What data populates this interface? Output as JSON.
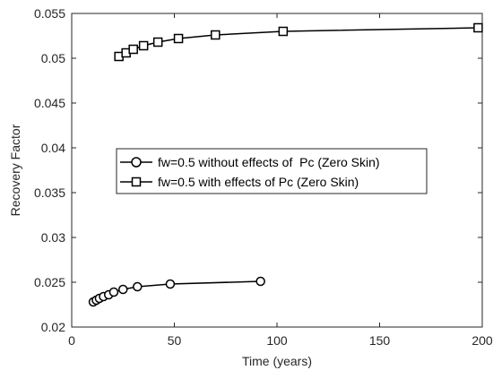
{
  "chart_data": {
    "type": "line",
    "xlabel": "Time (years)",
    "ylabel": "Recovery Factor",
    "xlim": [
      0,
      200
    ],
    "ylim": [
      0.02,
      0.055
    ],
    "xticks": [
      0,
      50,
      100,
      150,
      200
    ],
    "xtick_labels": [
      "0",
      "50",
      "100",
      "150",
      "200"
    ],
    "yticks": [
      0.02,
      0.025,
      0.03,
      0.035,
      0.04,
      0.045,
      0.05,
      0.055
    ],
    "ytick_labels": [
      "0.02",
      "0.025",
      "0.03",
      "0.035",
      "0.04",
      "0.045",
      "0.05",
      "0.055"
    ],
    "grid": false,
    "legend_position": "center",
    "series": [
      {
        "name": "fw=0.5 without effects of  Pc (Zero Skin)",
        "marker": "circle",
        "color": "#000000",
        "x": [
          10.5,
          12,
          13.5,
          15.5,
          18,
          20.5,
          25,
          32,
          48,
          92
        ],
        "y": [
          0.0228,
          0.023,
          0.0232,
          0.0234,
          0.0236,
          0.0239,
          0.0242,
          0.0245,
          0.0248,
          0.0251
        ]
      },
      {
        "name": "fw=0.5 with effects of Pc (Zero Skin)",
        "marker": "square",
        "color": "#000000",
        "x": [
          23,
          26.5,
          30,
          35,
          42,
          52,
          70,
          103,
          198
        ],
        "y": [
          0.0502,
          0.0506,
          0.051,
          0.0514,
          0.0518,
          0.0522,
          0.0526,
          0.053,
          0.0534
        ]
      }
    ]
  }
}
